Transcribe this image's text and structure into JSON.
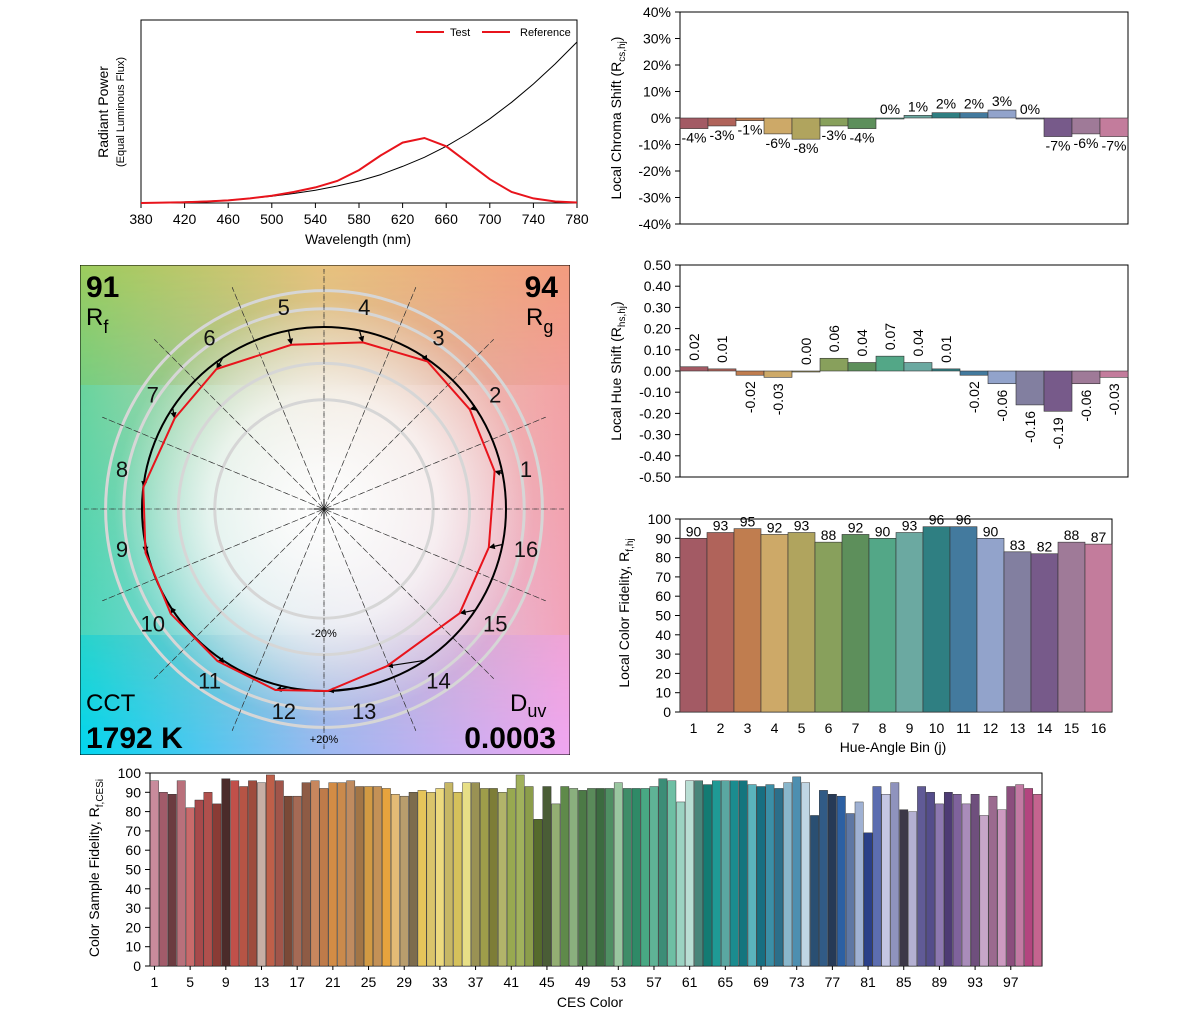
{
  "spectrum": {
    "ylabel": "Radiant Power",
    "ylabel2": "(Equal Luminous Flux)",
    "xlabel": "Wavelength (nm)",
    "xticks": [
      "380",
      "420",
      "460",
      "500",
      "540",
      "580",
      "620",
      "660",
      "700",
      "740",
      "780"
    ],
    "legend": [
      "Test",
      "Reference"
    ],
    "colors": {
      "test": "#e8141c",
      "reference": "#000000"
    }
  },
  "vector": {
    "rf_value": "91",
    "rf_label": "R",
    "rf_sub": "f",
    "rg_value": "94",
    "rg_label": "R",
    "rg_sub": "g",
    "cct_label": "CCT",
    "cct_value": "1792 K",
    "duv_label": "D",
    "duv_sub": "uv",
    "duv_value": "0.0003",
    "ring_labels": [
      "+20%",
      "-20%"
    ],
    "hue_labels": [
      "1",
      "2",
      "3",
      "4",
      "5",
      "6",
      "7",
      "8",
      "9",
      "10",
      "11",
      "12",
      "13",
      "14",
      "15",
      "16"
    ]
  },
  "chart_data": [
    {
      "type": "line",
      "title": "",
      "xlabel": "Wavelength (nm)",
      "ylabel": "Radiant Power (Equal Luminous Flux)",
      "xlim": [
        380,
        780
      ],
      "x": [
        380,
        400,
        420,
        440,
        460,
        480,
        500,
        520,
        540,
        560,
        580,
        600,
        620,
        640,
        660,
        680,
        700,
        720,
        740,
        760,
        780
      ],
      "series": [
        {
          "name": "Test",
          "values": [
            0,
            0.002,
            0.004,
            0.008,
            0.014,
            0.025,
            0.04,
            0.06,
            0.085,
            0.12,
            0.18,
            0.26,
            0.33,
            0.355,
            0.31,
            0.22,
            0.13,
            0.06,
            0.025,
            0.008,
            0.003
          ]
        },
        {
          "name": "Reference",
          "values": [
            0.0,
            0.003,
            0.006,
            0.01,
            0.016,
            0.025,
            0.037,
            0.052,
            0.07,
            0.093,
            0.12,
            0.155,
            0.2,
            0.25,
            0.31,
            0.38,
            0.46,
            0.55,
            0.65,
            0.76,
            0.88
          ]
        }
      ]
    },
    {
      "type": "bar",
      "title": "",
      "xlabel": "",
      "ylabel": "Local Chroma Shift (R_cs,hj)",
      "ylim": [
        -40,
        40
      ],
      "categories": [
        "1",
        "2",
        "3",
        "4",
        "5",
        "6",
        "7",
        "8",
        "9",
        "10",
        "11",
        "12",
        "13",
        "14",
        "15",
        "16"
      ],
      "values": [
        -4,
        -3,
        -1,
        -6,
        -8,
        -3,
        -4,
        0,
        1,
        2,
        2,
        3,
        0,
        -7,
        -6,
        -7
      ],
      "labels": [
        "-4%",
        "-3%",
        "-1%",
        "-6%",
        "-8%",
        "-3%",
        "-4%",
        "0%",
        "1%",
        "2%",
        "2%",
        "3%",
        "0%",
        "-7%",
        "-6%",
        "-7%"
      ],
      "yticks": [
        "40%",
        "30%",
        "20%",
        "10%",
        "0%",
        "-10%",
        "-20%",
        "-30%",
        "-40%"
      ]
    },
    {
      "type": "bar",
      "title": "",
      "xlabel": "",
      "ylabel": "Local Hue Shift (R_hs,hj)",
      "ylim": [
        -0.5,
        0.5
      ],
      "categories": [
        "1",
        "2",
        "3",
        "4",
        "5",
        "6",
        "7",
        "8",
        "9",
        "10",
        "11",
        "12",
        "13",
        "14",
        "15",
        "16"
      ],
      "values": [
        0.02,
        0.01,
        -0.02,
        -0.03,
        0.0,
        0.06,
        0.04,
        0.07,
        0.04,
        0.01,
        -0.02,
        -0.06,
        -0.16,
        -0.19,
        -0.06,
        -0.03
      ],
      "labels": [
        "0.02",
        "0.01",
        "-0.02",
        "-0.03",
        "0.00",
        "0.06",
        "0.04",
        "0.07",
        "0.04",
        "0.01",
        "-0.02",
        "-0.06",
        "-0.16",
        "-0.19",
        "-0.06",
        "-0.03"
      ],
      "yticks": [
        "0.50",
        "0.40",
        "0.30",
        "0.20",
        "0.10",
        "0.00",
        "-0.10",
        "-0.20",
        "-0.30",
        "-0.40",
        "-0.50"
      ]
    },
    {
      "type": "bar",
      "title": "",
      "xlabel": "Hue-Angle Bin (j)",
      "ylabel": "Local Color Fidelity, R_f,hj",
      "ylim": [
        0,
        100
      ],
      "categories": [
        "1",
        "2",
        "3",
        "4",
        "5",
        "6",
        "7",
        "8",
        "9",
        "10",
        "11",
        "12",
        "13",
        "14",
        "15",
        "16"
      ],
      "values": [
        90,
        93,
        95,
        92,
        93,
        88,
        92,
        90,
        93,
        96,
        96,
        90,
        83,
        82,
        88,
        87
      ],
      "yticks": [
        "0",
        "10",
        "20",
        "30",
        "40",
        "50",
        "60",
        "70",
        "80",
        "90",
        "100"
      ]
    },
    {
      "type": "bar",
      "title": "",
      "xlabel": "CES Color",
      "ylabel": "Color Sample Fidelity, R_f,CESi",
      "ylim": [
        0,
        100
      ],
      "xticks": [
        "1",
        "5",
        "9",
        "13",
        "17",
        "21",
        "25",
        "29",
        "33",
        "37",
        "41",
        "45",
        "49",
        "53",
        "57",
        "61",
        "65",
        "69",
        "73",
        "77",
        "81",
        "85",
        "89",
        "93",
        "97"
      ],
      "values": [
        96,
        90,
        89,
        96,
        82,
        86,
        90,
        84,
        97,
        96,
        93,
        96,
        95,
        99,
        96,
        88,
        88,
        95,
        96,
        92,
        95,
        95,
        96,
        93,
        93,
        93,
        92,
        89,
        88,
        90,
        91,
        90,
        92,
        95,
        90,
        95,
        95,
        92,
        92,
        90,
        92,
        99,
        93,
        76,
        93,
        84,
        93,
        92,
        91,
        92,
        92,
        92,
        95,
        92,
        92,
        92,
        93,
        97,
        96,
        85,
        96,
        96,
        94,
        96,
        96,
        96,
        96,
        94,
        93,
        94,
        92,
        95,
        98,
        95,
        78,
        91,
        89,
        88,
        79,
        85,
        69,
        93,
        89,
        95,
        81,
        80,
        93,
        90,
        84,
        90,
        89,
        84,
        89,
        78,
        88,
        81,
        93,
        94,
        92,
        89
      ],
      "colors": [
        "#c98b9c",
        "#a25b6a",
        "#6c3b40",
        "#b9707b",
        "#c96a6b",
        "#a7494b",
        "#b0504d",
        "#8a3b35",
        "#4b2b2a",
        "#c0504a",
        "#b65445",
        "#9e4b3d",
        "#c7aea5",
        "#bf5f49",
        "#a1554a",
        "#7a4937",
        "#a66a55",
        "#8e5b45",
        "#c7875e",
        "#be7b4a",
        "#d38c45",
        "#ca8a4c",
        "#c08b5f",
        "#a27546",
        "#d29a43",
        "#c49156",
        "#e7a33d",
        "#e4bb76",
        "#b89d6d",
        "#7d6c4d",
        "#e6c55a",
        "#dac46b",
        "#ecd97e",
        "#c7b765",
        "#d5c15b",
        "#e7df86",
        "#9a9254",
        "#9e9d4a",
        "#7d7d37",
        "#b2b46a",
        "#98a950",
        "#a1b15c",
        "#8c9d4b",
        "#556a2c",
        "#4a5d36",
        "#93ae73",
        "#5f8a4a",
        "#8ab07e",
        "#4c7a46",
        "#5a8a5a",
        "#3c6b40",
        "#4f8f63",
        "#9ac7a0",
        "#3f8d68",
        "#2f8a67",
        "#48a883",
        "#5fb396",
        "#3c8d77",
        "#6ebfa4",
        "#9bd3c2",
        "#b9ded4",
        "#49857a",
        "#137b73",
        "#1f9a95",
        "#5aa7a1",
        "#1b8c8f",
        "#14757e",
        "#5ab3bd",
        "#176f82",
        "#3b8fa7",
        "#2c6f8a",
        "#89b7cc",
        "#4d8fb0",
        "#c0d5e3",
        "#2a4f72",
        "#315b86",
        "#263a57",
        "#2c60a3",
        "#5e77a4",
        "#9fb1d3",
        "#2a3f88",
        "#5c6db0",
        "#c4c6e3",
        "#8f93bd",
        "#3d3848",
        "#b4b0d2",
        "#605a96",
        "#544d8b",
        "#8c78b0",
        "#4d3b74",
        "#7f629c",
        "#a98cba",
        "#6f4f7d",
        "#c6a6c8",
        "#9b6a8f",
        "#cd9ac1",
        "#8c4e7d",
        "#c37aa3",
        "#b3457f",
        "#c4648f"
      ]
    }
  ]
}
